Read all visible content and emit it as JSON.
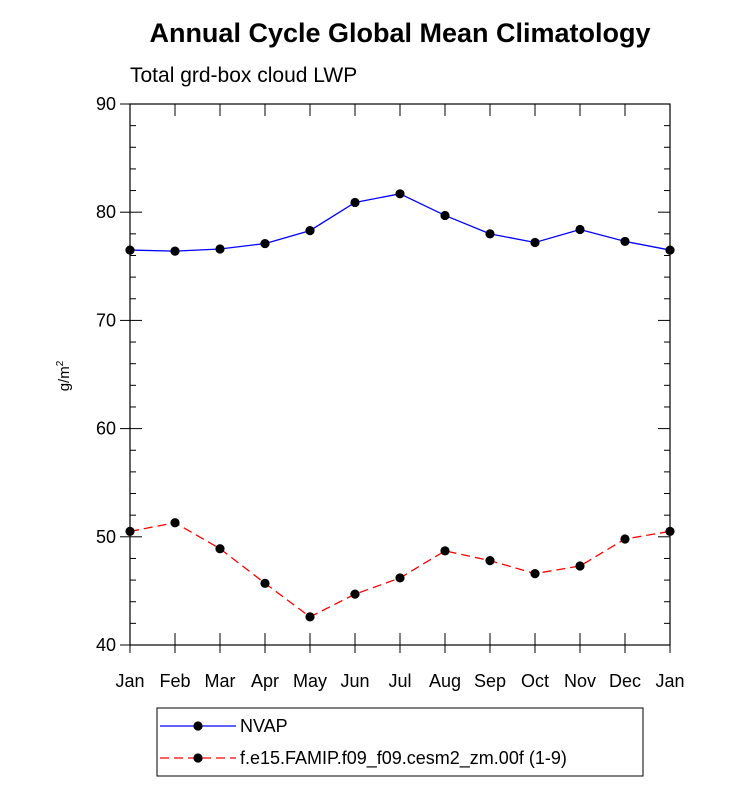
{
  "chart_data": {
    "type": "line",
    "title": "Annual Cycle Global Mean Climatology",
    "subtitle": "Total grd-box cloud LWP",
    "ylabel": "g/m",
    "ylabel_superscript": "2",
    "ylim": [
      40,
      90
    ],
    "yticks": [
      "40",
      "50",
      "60",
      "70",
      "80",
      "90"
    ],
    "grid": false,
    "legend_position": "bottom",
    "categories": [
      "Jan",
      "Feb",
      "Mar",
      "Apr",
      "May",
      "Jun",
      "Jul",
      "Aug",
      "Sep",
      "Oct",
      "Nov",
      "Dec",
      "Jan"
    ],
    "series": [
      {
        "name": "NVAP",
        "color": "#0000ff",
        "dash": "solid",
        "marker": "filled-circle",
        "values": [
          76.5,
          76.4,
          76.6,
          77.1,
          78.3,
          80.9,
          81.7,
          79.7,
          78.0,
          77.2,
          78.4,
          77.3,
          76.5
        ]
      },
      {
        "name": "f.e15.FAMIP.f09_f09.cesm2_zm.00f (1-9)",
        "color": "#ff0000",
        "dash": "dashed",
        "marker": "filled-circle",
        "values": [
          50.5,
          51.3,
          48.9,
          45.7,
          42.6,
          44.7,
          46.2,
          48.7,
          47.8,
          46.6,
          47.3,
          49.8,
          50.5
        ]
      }
    ]
  }
}
